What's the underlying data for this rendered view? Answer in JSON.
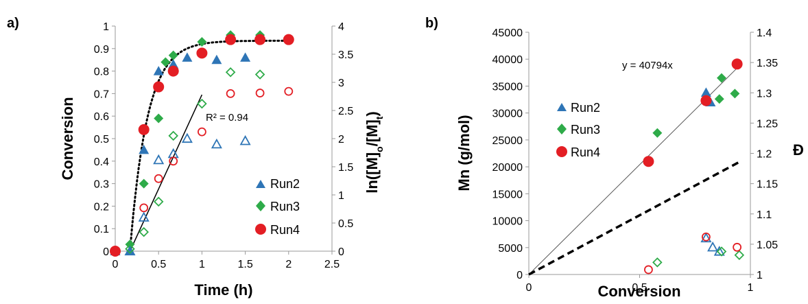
{
  "colors": {
    "run2": "#2e75b6",
    "run3": "#2eab49",
    "run4": "#e31e24"
  },
  "chart_data": [
    {
      "type": "scatter",
      "panel_label": "a)",
      "xlabel": "Time (h)",
      "ylabel": "Conversion",
      "y2label": "ln([M]o/[M]t)",
      "xlim": [
        0,
        2.5
      ],
      "ylim": [
        0,
        1
      ],
      "y2lim": [
        0,
        4
      ],
      "xticks": [
        "0",
        "0.5",
        "1",
        "1.5",
        "2",
        "2.5"
      ],
      "yticks": [
        "0",
        "0.1",
        "0.2",
        "0.3",
        "0.4",
        "0.5",
        "0.6",
        "0.7",
        "0.8",
        "0.9",
        "1"
      ],
      "y2ticks": [
        "0",
        "0.5",
        "1",
        "1.5",
        "2",
        "2.5",
        "3",
        "3.5",
        "4"
      ],
      "grid": false,
      "legend": [
        "Run2",
        "Run3",
        "Run4"
      ],
      "legend_position": "bottom-right",
      "annotation": "R² = 0.94",
      "series": [
        {
          "name": "Run2",
          "axis": "left",
          "filled": true,
          "marker": "triangle",
          "x": [
            0,
            0.17,
            0.33,
            0.5,
            0.67,
            0.83,
            1.17,
            1.5
          ],
          "y": [
            0,
            0,
            0.45,
            0.8,
            0.83,
            0.86,
            0.85,
            0.86
          ]
        },
        {
          "name": "Run3",
          "axis": "left",
          "filled": true,
          "marker": "diamond",
          "x": [
            0,
            0.17,
            0.33,
            0.5,
            0.58,
            0.67,
            1.0,
            1.33,
            1.67,
            2.0
          ],
          "y": [
            0,
            0.03,
            0.3,
            0.59,
            0.84,
            0.87,
            0.93,
            0.96,
            0.96,
            0.94
          ]
        },
        {
          "name": "Run4",
          "axis": "left",
          "filled": true,
          "marker": "circle",
          "x": [
            0,
            0.33,
            0.5,
            0.67,
            1.0,
            1.33,
            1.67,
            2.0
          ],
          "y": [
            0,
            0.54,
            0.73,
            0.8,
            0.88,
            0.94,
            0.94,
            0.94
          ]
        },
        {
          "name": "Run2",
          "axis": "right",
          "filled": false,
          "marker": "triangle",
          "x": [
            0.17,
            0.33,
            0.5,
            0.67,
            0.83,
            1.17,
            1.5
          ],
          "y": [
            0,
            0.6,
            1.62,
            1.73,
            2.0,
            1.9,
            1.96
          ]
        },
        {
          "name": "Run3",
          "axis": "right",
          "filled": false,
          "marker": "diamond",
          "x": [
            0.17,
            0.33,
            0.5,
            0.67,
            1.0,
            1.33,
            1.67
          ],
          "y": [
            0.04,
            0.34,
            0.88,
            2.05,
            2.62,
            3.18,
            3.14
          ]
        },
        {
          "name": "Run4",
          "axis": "right",
          "filled": false,
          "marker": "circle",
          "x": [
            0,
            0.33,
            0.5,
            0.67,
            1.0,
            1.33,
            1.67,
            2.0
          ],
          "y": [
            0,
            0.77,
            1.29,
            1.6,
            2.12,
            2.8,
            2.81,
            2.84
          ]
        }
      ]
    },
    {
      "type": "scatter",
      "panel_label": "b)",
      "xlabel": "Conversion",
      "ylabel": "Mn (g/mol)",
      "y2label": "Đ",
      "xlim": [
        0,
        1
      ],
      "ylim": [
        0,
        45000
      ],
      "y2lim": [
        1,
        1.4
      ],
      "xticks": [
        "0",
        "0.5",
        "1"
      ],
      "yticks": [
        "0",
        "5000",
        "10000",
        "15000",
        "20000",
        "25000",
        "30000",
        "35000",
        "40000",
        "45000"
      ],
      "y2ticks": [
        "1",
        "1.05",
        "1.1",
        "1.15",
        "1.2",
        "1.25",
        "1.3",
        "1.35",
        "1.4"
      ],
      "grid": false,
      "legend": [
        "Run2",
        "Run3",
        "Run4"
      ],
      "legend_position": "middle-left",
      "annotation": "y = 40794x",
      "fit_slope": 40794,
      "theoretical_slope": 22000,
      "series": [
        {
          "name": "Run2",
          "axis": "left",
          "filled": true,
          "marker": "triangle",
          "x": [
            0.8,
            0.82
          ],
          "y": [
            33800,
            32000
          ]
        },
        {
          "name": "Run3",
          "axis": "left",
          "filled": true,
          "marker": "diamond",
          "x": [
            0.58,
            0.86,
            0.87,
            0.93
          ],
          "y": [
            26300,
            32600,
            36500,
            33600
          ]
        },
        {
          "name": "Run4",
          "axis": "left",
          "filled": true,
          "marker": "circle",
          "x": [
            0.54,
            0.8,
            0.94
          ],
          "y": [
            21000,
            32300,
            39100
          ]
        },
        {
          "name": "Run2",
          "axis": "right",
          "filled": false,
          "marker": "triangle",
          "x": [
            0.8,
            0.83,
            0.86
          ],
          "y": [
            1.06,
            1.045,
            1.038
          ]
        },
        {
          "name": "Run3",
          "axis": "right",
          "filled": false,
          "marker": "diamond",
          "x": [
            0.58,
            0.87,
            0.95
          ],
          "y": [
            1.02,
            1.038,
            1.032
          ]
        },
        {
          "name": "Run4",
          "axis": "right",
          "filled": false,
          "marker": "circle",
          "x": [
            0.54,
            0.8,
            0.94
          ],
          "y": [
            1.008,
            1.062,
            1.045
          ]
        }
      ]
    }
  ]
}
